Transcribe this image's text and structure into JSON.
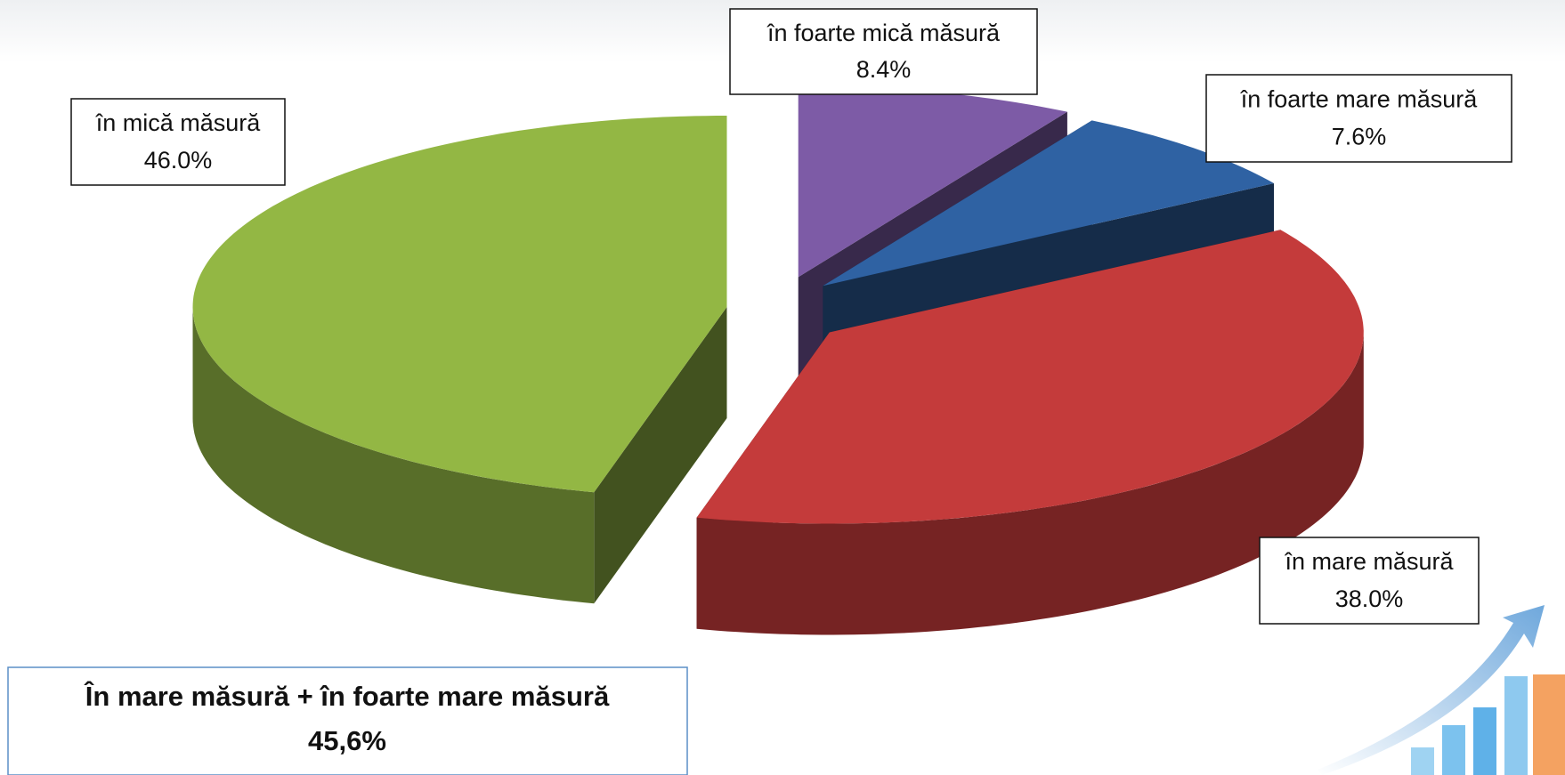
{
  "chart_data": {
    "type": "pie3d",
    "categories": [
      "în foarte mică măsură",
      "în foarte mare măsură",
      "în mare măsură",
      "în mică măsură"
    ],
    "values": [
      8.4,
      7.6,
      38.0,
      46.0
    ],
    "value_labels": [
      "8.4%",
      "7.6%",
      "38.0%",
      "46.0%"
    ],
    "colors": [
      "#7d5ba6",
      "#2f62a3",
      "#c43b3b",
      "#93b744"
    ],
    "annotation": {
      "title": "În mare măsură + în foarte mare măsură",
      "text": "45,6%"
    }
  }
}
